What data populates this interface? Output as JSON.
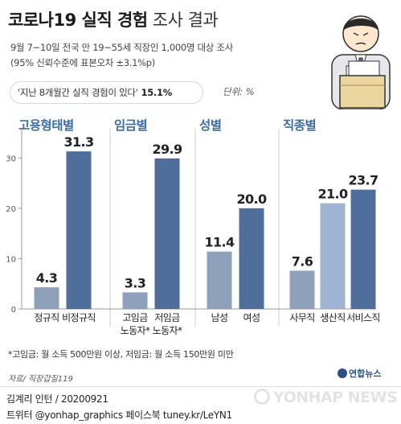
{
  "title_bold": "코로나19 실직 경험",
  "title_light": "조사 결과",
  "subtitle_line1": "9월 7~10일 전국 만 19~55세  직장인 1,000명 대상 조사",
  "subtitle_line2": "(95% 신뢰수준에 표본오차 ±3.1%p)",
  "highlight_question": "'지난 8개월간 실직 경험이 있다'",
  "highlight_value": "15.1%",
  "unit_label": "단위: %",
  "footnote": "*고임금: 월 소득 500만원 이상, 저임금: 월 소득 150만원 미만",
  "source": "자료/ 직장갑질119",
  "brand": "연합뉴스",
  "credit": "김계리 인턴 / 20200921",
  "social": "트위터 @yonhap_graphics  페이스북 tuney.kr/LeYN1",
  "watermark": "YONHAP NEWS",
  "colors": {
    "light_bar": "#8fa1ba",
    "dark_bar": "#4f6e9c",
    "category": "#3d6ea8",
    "axis": "#999999"
  },
  "chart_data": {
    "type": "bar",
    "ylim": [
      0,
      35
    ],
    "yticks": [
      0,
      10,
      20,
      30
    ],
    "groups": [
      {
        "name": "고용형태별",
        "bars": [
          {
            "label": "정규직",
            "value": 4.3,
            "shade": "light"
          },
          {
            "label": "비정규직",
            "value": 31.3,
            "shade": "dark"
          }
        ]
      },
      {
        "name": "임금별",
        "bars": [
          {
            "label": "고임금\n노동자*",
            "value": 3.3,
            "shade": "light"
          },
          {
            "label": "저임금\n노동자*",
            "value": 29.9,
            "shade": "dark"
          }
        ]
      },
      {
        "name": "성별",
        "bars": [
          {
            "label": "남성",
            "value": 11.4,
            "shade": "light"
          },
          {
            "label": "여성",
            "value": 20.0,
            "shade": "dark"
          }
        ]
      },
      {
        "name": "직종별",
        "bars": [
          {
            "label": "사무직",
            "value": 7.6,
            "shade": "light"
          },
          {
            "label": "생산직",
            "value": 21.0,
            "shade": "mid"
          },
          {
            "label": "서비스직",
            "value": 23.7,
            "shade": "dark"
          }
        ]
      }
    ]
  }
}
